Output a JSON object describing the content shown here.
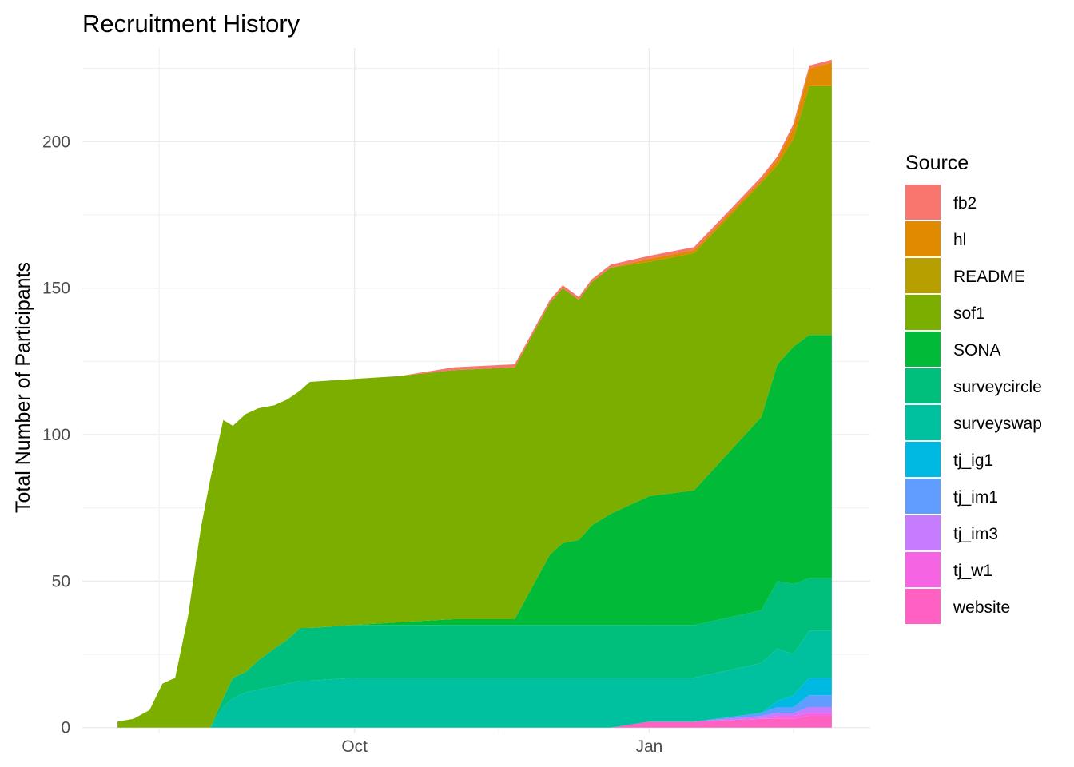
{
  "chart_data": {
    "type": "area",
    "stacked": true,
    "title": "Recruitment History",
    "xlabel": "",
    "ylabel": "Total Number of Participants",
    "x_ticks": [
      "Oct",
      "Jan"
    ],
    "y_ticks": [
      0,
      50,
      100,
      150,
      200
    ],
    "ylim": [
      -2,
      232
    ],
    "grid": true,
    "legend_title": "Source",
    "legend_position": "right",
    "x": [
      "2023-07-19",
      "2023-07-24",
      "2023-07-29",
      "2023-08-02",
      "2023-08-06",
      "2023-08-10",
      "2023-08-14",
      "2023-08-17",
      "2023-08-21",
      "2023-08-24",
      "2023-08-28",
      "2023-09-01",
      "2023-09-06",
      "2023-09-10",
      "2023-09-14",
      "2023-09-17",
      "2023-10-01",
      "2023-10-15",
      "2023-11-01",
      "2023-11-20",
      "2023-12-01",
      "2023-12-05",
      "2023-12-10",
      "2023-12-14",
      "2023-12-20",
      "2024-01-01",
      "2024-01-15",
      "2024-02-05",
      "2024-02-10",
      "2024-02-15",
      "2024-02-20",
      "2024-02-27"
    ],
    "series": [
      {
        "name": "website",
        "color": "#FF61C3",
        "values": [
          0,
          0,
          0,
          0,
          0,
          0,
          0,
          0,
          0,
          0,
          0,
          0,
          0,
          0,
          0,
          0,
          0,
          0,
          0,
          0,
          0,
          0,
          0,
          0,
          0,
          2,
          2,
          3,
          3,
          3,
          4,
          4
        ]
      },
      {
        "name": "tj_w1",
        "color": "#F564E3",
        "values": [
          0,
          0,
          0,
          0,
          0,
          0,
          0,
          0,
          0,
          0,
          0,
          0,
          0,
          0,
          0,
          0,
          0,
          0,
          0,
          0,
          0,
          0,
          0,
          0,
          0,
          0,
          0,
          0,
          1,
          1,
          1,
          1
        ]
      },
      {
        "name": "tj_im3",
        "color": "#C77CFF",
        "values": [
          0,
          0,
          0,
          0,
          0,
          0,
          0,
          0,
          0,
          0,
          0,
          0,
          0,
          0,
          0,
          0,
          0,
          0,
          0,
          0,
          0,
          0,
          0,
          0,
          0,
          0,
          0,
          1,
          1,
          1,
          2,
          2
        ]
      },
      {
        "name": "tj_im1",
        "color": "#619CFF",
        "values": [
          0,
          0,
          0,
          0,
          0,
          0,
          0,
          0,
          0,
          0,
          0,
          0,
          0,
          0,
          0,
          0,
          0,
          0,
          0,
          0,
          0,
          0,
          0,
          0,
          0,
          0,
          0,
          1,
          2,
          2,
          4,
          4
        ]
      },
      {
        "name": "tj_ig1",
        "color": "#00B9E3",
        "values": [
          0,
          0,
          0,
          0,
          0,
          0,
          0,
          0,
          0,
          0,
          0,
          0,
          0,
          0,
          0,
          0,
          0,
          0,
          0,
          0,
          0,
          0,
          0,
          0,
          0,
          0,
          0,
          0,
          2,
          4,
          6,
          6
        ]
      },
      {
        "name": "surveyswap",
        "color": "#00C19F",
        "values": [
          0,
          0,
          0,
          0,
          0,
          0,
          0,
          0,
          7,
          10,
          12,
          13,
          14,
          15,
          16,
          16,
          17,
          17,
          17,
          17,
          17,
          17,
          17,
          17,
          17,
          15,
          15,
          17,
          18,
          14,
          16,
          16
        ]
      },
      {
        "name": "surveycircle",
        "color": "#00BF7D",
        "values": [
          0,
          0,
          0,
          0,
          0,
          0,
          0,
          0,
          3,
          7,
          7,
          10,
          13,
          15,
          18,
          18,
          18,
          18,
          18,
          18,
          18,
          18,
          18,
          18,
          18,
          18,
          18,
          18,
          23,
          24,
          18,
          18
        ]
      },
      {
        "name": "SONA",
        "color": "#00BA38",
        "values": [
          0,
          0,
          0,
          0,
          0,
          0,
          0,
          0,
          0,
          0,
          0,
          0,
          0,
          0,
          0,
          0,
          0,
          1,
          2,
          2,
          24,
          28,
          29,
          34,
          38,
          44,
          46,
          66,
          74,
          81,
          83,
          83
        ]
      },
      {
        "name": "sof1",
        "color": "#7CAE00",
        "values": [
          2,
          3,
          6,
          15,
          17,
          38,
          68,
          85,
          95,
          86,
          88,
          86,
          83,
          82,
          81,
          84,
          84,
          84,
          85,
          86,
          86,
          87,
          82,
          83,
          84,
          80,
          81,
          80,
          68,
          71,
          85,
          85
        ]
      },
      {
        "name": "README",
        "color": "#B79F00",
        "values": [
          0,
          0,
          0,
          0,
          0,
          0,
          0,
          0,
          0,
          0,
          0,
          0,
          0,
          0,
          0,
          0,
          0,
          0,
          0,
          0,
          0,
          0,
          0,
          0,
          0,
          0,
          0,
          0,
          0,
          0,
          0,
          0
        ]
      },
      {
        "name": "hl",
        "color": "#E18A00",
        "values": [
          0,
          0,
          0,
          0,
          0,
          0,
          0,
          0,
          0,
          0,
          0,
          0,
          0,
          0,
          0,
          0,
          0,
          0,
          0,
          0,
          0,
          0,
          0,
          0,
          0,
          1,
          1,
          1,
          2,
          4,
          6,
          8
        ]
      },
      {
        "name": "fb2",
        "color": "#F8766D",
        "values": [
          0,
          0,
          0,
          0,
          0,
          0,
          0,
          0,
          0,
          0,
          0,
          0,
          0,
          0,
          0,
          0,
          0,
          0,
          1,
          1,
          1,
          1,
          1,
          1,
          1,
          1,
          1,
          1,
          1,
          1,
          1,
          1
        ]
      }
    ],
    "legend_order": [
      "fb2",
      "hl",
      "README",
      "sof1",
      "SONA",
      "surveycircle",
      "surveyswap",
      "tj_ig1",
      "tj_im1",
      "tj_im3",
      "tj_w1",
      "website"
    ]
  }
}
